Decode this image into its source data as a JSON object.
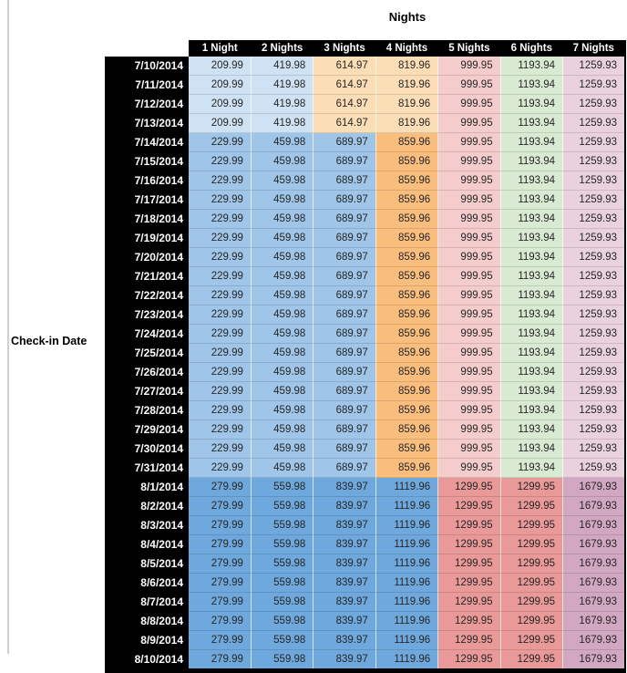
{
  "chart_data": {
    "type": "table",
    "title": "Nights",
    "row_axis_label": "Check-in Date",
    "columns": [
      "1 Night",
      "2 Nights",
      "3 Nights",
      "4 Nights",
      "5 Nights",
      "6 Nights",
      "7 Nights"
    ],
    "palette": {
      "header_bg": "#000000",
      "header_text": "#ffffff",
      "value_text": "#262626",
      "light_blue": "#CFE2F3",
      "med_blue": "#9FC5E8",
      "dark_blue": "#6FA8DC",
      "light_orange": "#FBDEB6",
      "med_orange": "#F9BD7E",
      "light_red": "#F4CCCB",
      "med_red": "#EA9999",
      "light_green": "#D9EAD3",
      "light_magenta": "#E9D1DE",
      "med_magenta": "#D2A7C2"
    },
    "bands": {
      "A": [
        "light_blue",
        "light_blue",
        "light_orange",
        "light_orange",
        "light_red",
        "light_green",
        "light_magenta"
      ],
      "B": [
        "med_blue",
        "med_blue",
        "med_blue",
        "med_orange",
        "light_red",
        "light_green",
        "light_magenta"
      ],
      "C": [
        "dark_blue",
        "dark_blue",
        "dark_blue",
        "dark_blue",
        "med_red",
        "med_red",
        "med_magenta"
      ]
    },
    "rows": [
      {
        "date": "7/10/2014",
        "band": "A",
        "values": [
          "209.99",
          "419.98",
          "614.97",
          "819.96",
          "999.95",
          "1193.94",
          "1259.93"
        ]
      },
      {
        "date": "7/11/2014",
        "band": "A",
        "values": [
          "209.99",
          "419.98",
          "614.97",
          "819.96",
          "999.95",
          "1193.94",
          "1259.93"
        ]
      },
      {
        "date": "7/12/2014",
        "band": "A",
        "values": [
          "209.99",
          "419.98",
          "614.97",
          "819.96",
          "999.95",
          "1193.94",
          "1259.93"
        ]
      },
      {
        "date": "7/13/2014",
        "band": "A",
        "values": [
          "209.99",
          "419.98",
          "614.97",
          "819.96",
          "999.95",
          "1193.94",
          "1259.93"
        ]
      },
      {
        "date": "7/14/2014",
        "band": "B",
        "values": [
          "229.99",
          "459.98",
          "689.97",
          "859.96",
          "999.95",
          "1193.94",
          "1259.93"
        ]
      },
      {
        "date": "7/15/2014",
        "band": "B",
        "values": [
          "229.99",
          "459.98",
          "689.97",
          "859.96",
          "999.95",
          "1193.94",
          "1259.93"
        ]
      },
      {
        "date": "7/16/2014",
        "band": "B",
        "values": [
          "229.99",
          "459.98",
          "689.97",
          "859.96",
          "999.95",
          "1193.94",
          "1259.93"
        ]
      },
      {
        "date": "7/17/2014",
        "band": "B",
        "values": [
          "229.99",
          "459.98",
          "689.97",
          "859.96",
          "999.95",
          "1193.94",
          "1259.93"
        ]
      },
      {
        "date": "7/18/2014",
        "band": "B",
        "values": [
          "229.99",
          "459.98",
          "689.97",
          "859.96",
          "999.95",
          "1193.94",
          "1259.93"
        ]
      },
      {
        "date": "7/19/2014",
        "band": "B",
        "values": [
          "229.99",
          "459.98",
          "689.97",
          "859.96",
          "999.95",
          "1193.94",
          "1259.93"
        ]
      },
      {
        "date": "7/20/2014",
        "band": "B",
        "values": [
          "229.99",
          "459.98",
          "689.97",
          "859.96",
          "999.95",
          "1193.94",
          "1259.93"
        ]
      },
      {
        "date": "7/21/2014",
        "band": "B",
        "values": [
          "229.99",
          "459.98",
          "689.97",
          "859.96",
          "999.95",
          "1193.94",
          "1259.93"
        ]
      },
      {
        "date": "7/22/2014",
        "band": "B",
        "values": [
          "229.99",
          "459.98",
          "689.97",
          "859.96",
          "999.95",
          "1193.94",
          "1259.93"
        ]
      },
      {
        "date": "7/23/2014",
        "band": "B",
        "values": [
          "229.99",
          "459.98",
          "689.97",
          "859.96",
          "999.95",
          "1193.94",
          "1259.93"
        ]
      },
      {
        "date": "7/24/2014",
        "band": "B",
        "values": [
          "229.99",
          "459.98",
          "689.97",
          "859.96",
          "999.95",
          "1193.94",
          "1259.93"
        ]
      },
      {
        "date": "7/25/2014",
        "band": "B",
        "values": [
          "229.99",
          "459.98",
          "689.97",
          "859.96",
          "999.95",
          "1193.94",
          "1259.93"
        ]
      },
      {
        "date": "7/26/2014",
        "band": "B",
        "values": [
          "229.99",
          "459.98",
          "689.97",
          "859.96",
          "999.95",
          "1193.94",
          "1259.93"
        ]
      },
      {
        "date": "7/27/2014",
        "band": "B",
        "values": [
          "229.99",
          "459.98",
          "689.97",
          "859.96",
          "999.95",
          "1193.94",
          "1259.93"
        ]
      },
      {
        "date": "7/28/2014",
        "band": "B",
        "values": [
          "229.99",
          "459.98",
          "689.97",
          "859.96",
          "999.95",
          "1193.94",
          "1259.93"
        ]
      },
      {
        "date": "7/29/2014",
        "band": "B",
        "values": [
          "229.99",
          "459.98",
          "689.97",
          "859.96",
          "999.95",
          "1193.94",
          "1259.93"
        ]
      },
      {
        "date": "7/30/2014",
        "band": "B",
        "values": [
          "229.99",
          "459.98",
          "689.97",
          "859.96",
          "999.95",
          "1193.94",
          "1259.93"
        ]
      },
      {
        "date": "7/31/2014",
        "band": "B",
        "values": [
          "229.99",
          "459.98",
          "689.97",
          "859.96",
          "999.95",
          "1193.94",
          "1259.93"
        ]
      },
      {
        "date": "8/1/2014",
        "band": "C",
        "values": [
          "279.99",
          "559.98",
          "839.97",
          "1119.96",
          "1299.95",
          "1299.95",
          "1679.93"
        ]
      },
      {
        "date": "8/2/2014",
        "band": "C",
        "values": [
          "279.99",
          "559.98",
          "839.97",
          "1119.96",
          "1299.95",
          "1299.95",
          "1679.93"
        ]
      },
      {
        "date": "8/3/2014",
        "band": "C",
        "values": [
          "279.99",
          "559.98",
          "839.97",
          "1119.96",
          "1299.95",
          "1299.95",
          "1679.93"
        ]
      },
      {
        "date": "8/4/2014",
        "band": "C",
        "values": [
          "279.99",
          "559.98",
          "839.97",
          "1119.96",
          "1299.95",
          "1299.95",
          "1679.93"
        ]
      },
      {
        "date": "8/5/2014",
        "band": "C",
        "values": [
          "279.99",
          "559.98",
          "839.97",
          "1119.96",
          "1299.95",
          "1299.95",
          "1679.93"
        ]
      },
      {
        "date": "8/6/2014",
        "band": "C",
        "values": [
          "279.99",
          "559.98",
          "839.97",
          "1119.96",
          "1299.95",
          "1299.95",
          "1679.93"
        ]
      },
      {
        "date": "8/7/2014",
        "band": "C",
        "values": [
          "279.99",
          "559.98",
          "839.97",
          "1119.96",
          "1299.95",
          "1299.95",
          "1679.93"
        ]
      },
      {
        "date": "8/8/2014",
        "band": "C",
        "values": [
          "279.99",
          "559.98",
          "839.97",
          "1119.96",
          "1299.95",
          "1299.95",
          "1679.93"
        ]
      },
      {
        "date": "8/9/2014",
        "band": "C",
        "values": [
          "279.99",
          "559.98",
          "839.97",
          "1119.96",
          "1299.95",
          "1299.95",
          "1679.93"
        ]
      },
      {
        "date": "8/10/2014",
        "band": "C",
        "values": [
          "279.99",
          "559.98",
          "839.97",
          "1119.96",
          "1299.95",
          "1299.95",
          "1679.93"
        ]
      }
    ]
  }
}
